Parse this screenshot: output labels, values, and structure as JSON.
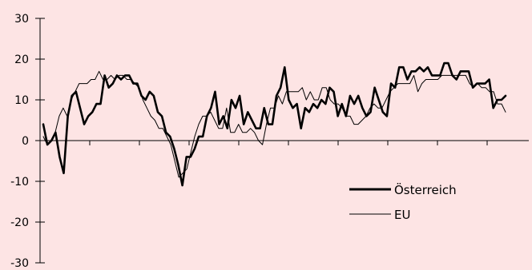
{
  "chart_data": {
    "type": "line",
    "title": "",
    "xlabel": "",
    "ylabel": "",
    "ylim": [
      -30,
      30
    ],
    "y_ticks": [
      30,
      20,
      10,
      0,
      -10,
      -20,
      -30
    ],
    "y_tick_labels": [
      "30",
      "20",
      "10",
      "0",
      "-10",
      "-20",
      "-30"
    ],
    "x_tick_count": 10,
    "grid": false,
    "legend_position": "lower-right",
    "series": [
      {
        "name": "Österreich",
        "color": "#000000",
        "line_weight": "thick",
        "values": [
          4,
          -1,
          0,
          2,
          -4,
          -8,
          6,
          11,
          12,
          8,
          4,
          6,
          7,
          9,
          9,
          16,
          13,
          14,
          16,
          15,
          16,
          16,
          14,
          14,
          11,
          10,
          12,
          11,
          7,
          6,
          2,
          1,
          -2,
          -6,
          -11,
          -4,
          -4,
          -2,
          1,
          1,
          6,
          8,
          12,
          4,
          6,
          3,
          10,
          8,
          11,
          4,
          7,
          5,
          3,
          3,
          8,
          4,
          4,
          11,
          13,
          18,
          10,
          8,
          9,
          3,
          8,
          7,
          9,
          8,
          10,
          9,
          13,
          12,
          6,
          9,
          6,
          11,
          9,
          11,
          8,
          6,
          7,
          13,
          10,
          7,
          6,
          14,
          13,
          18,
          18,
          15,
          17,
          17,
          18,
          17,
          18,
          16,
          16,
          16,
          19,
          19,
          16,
          15,
          17,
          17,
          17,
          13,
          14,
          14,
          14,
          15,
          8,
          10,
          10,
          11
        ]
      },
      {
        "name": "EU",
        "color": "#000000",
        "line_weight": "thin",
        "values": [
          1,
          -1,
          0,
          2,
          6,
          8,
          6,
          10,
          12,
          14,
          14,
          14,
          15,
          15,
          17,
          15,
          15,
          16,
          15,
          16,
          16,
          15,
          15,
          14,
          13,
          10,
          8,
          6,
          5,
          3,
          3,
          1,
          -1,
          -5,
          -9,
          -8,
          -7,
          -3,
          1,
          4,
          6,
          6,
          7,
          5,
          3,
          3,
          8,
          2,
          2,
          4,
          2,
          2,
          3,
          2,
          0,
          -1,
          4,
          8,
          8,
          11,
          9,
          12,
          12,
          12,
          12,
          13,
          10,
          12,
          10,
          10,
          13,
          13,
          10,
          9,
          9,
          8,
          6,
          6,
          4,
          4,
          5,
          6,
          8,
          9,
          8,
          8,
          10,
          12,
          13,
          14,
          14,
          14,
          14,
          16,
          12,
          14,
          15,
          15,
          15,
          15,
          16,
          16,
          16,
          16,
          16,
          16,
          16,
          14,
          13,
          14,
          13,
          13,
          12,
          12,
          9,
          9,
          7
        ]
      }
    ]
  }
}
